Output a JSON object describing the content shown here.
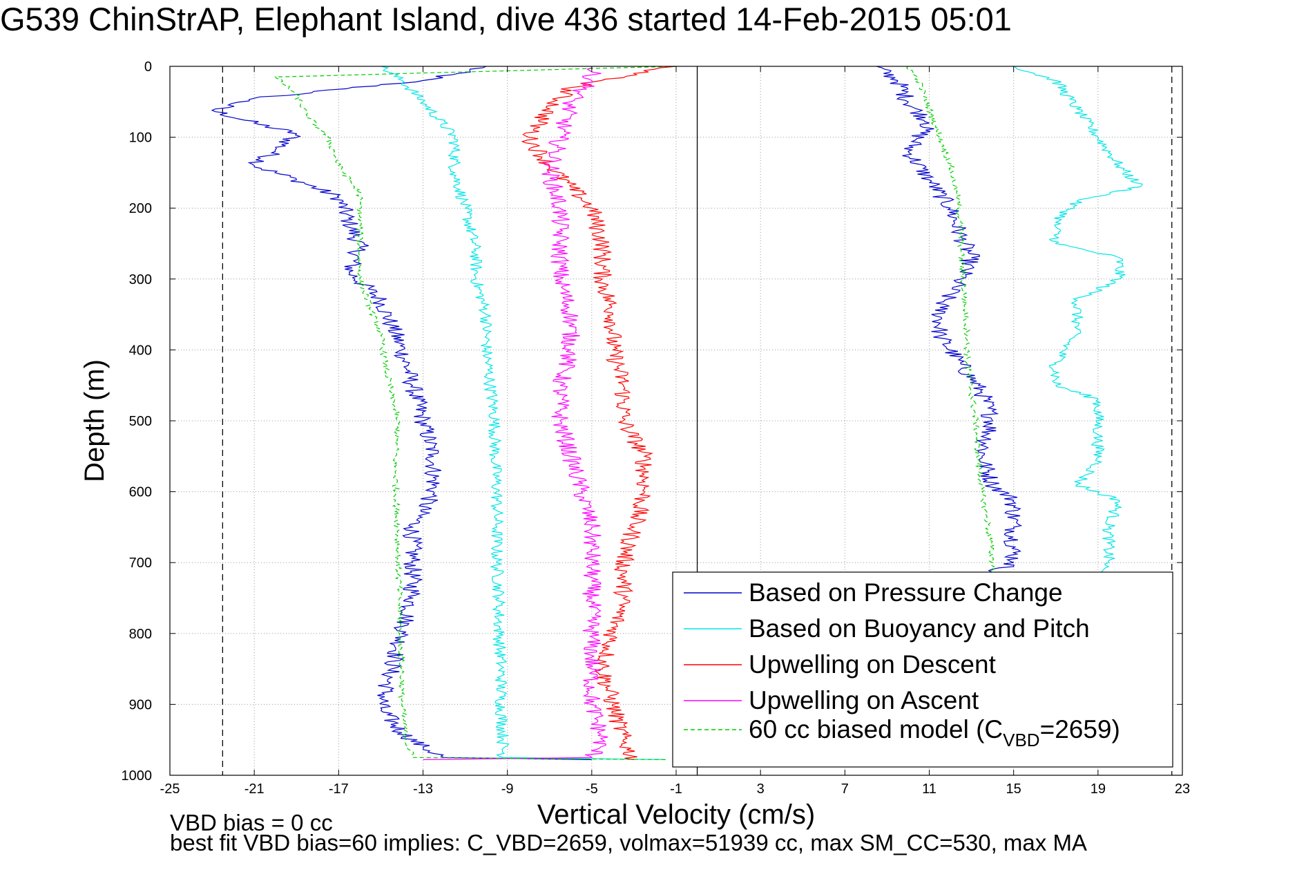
{
  "chart_data": {
    "type": "line",
    "title": "G539 ChinStrAP, Elephant Island, dive 436 started 14-Feb-2015 05:01",
    "xlabel": "Vertical Velocity (cm/s)",
    "ylabel": "Depth (m)",
    "xlim": [
      -25,
      23
    ],
    "ylim": [
      0,
      1000
    ],
    "y_reversed": true,
    "grid": true,
    "xticks": [
      -25,
      -21,
      -17,
      -13,
      -9,
      -5,
      -1,
      3,
      7,
      11,
      15,
      19,
      23
    ],
    "yticks": [
      0,
      100,
      200,
      300,
      400,
      500,
      600,
      700,
      800,
      900,
      1000
    ],
    "xtick_labels": [
      "-25",
      "-21",
      "-17",
      "-13",
      "-9",
      "-5",
      "-1",
      "3",
      "7",
      "11",
      "15",
      "19",
      "23"
    ],
    "ytick_labels": [
      "0",
      "100",
      "200",
      "300",
      "400",
      "500",
      "600",
      "700",
      "800",
      "900",
      "1000"
    ],
    "vertical_lines": [
      {
        "x": -22.5,
        "style": "dashed",
        "color": "#000000"
      },
      {
        "x": 22.5,
        "style": "dashed",
        "color": "#000000"
      },
      {
        "x": 0,
        "style": "solid",
        "color": "#000000"
      }
    ],
    "legend_position": "lower-right",
    "series": [
      {
        "name": "Based on Pressure Change",
        "color": "#0000cc",
        "style": "solid",
        "noise": 0.45,
        "points": [
          [
            -10,
            0
          ],
          [
            -13,
            20
          ],
          [
            -21,
            45
          ],
          [
            -23,
            62
          ],
          [
            -21,
            80
          ],
          [
            -19,
            95
          ],
          [
            -20,
            120
          ],
          [
            -21,
            140
          ],
          [
            -19,
            160
          ],
          [
            -17,
            185
          ],
          [
            -16.5,
            220
          ],
          [
            -16,
            255
          ],
          [
            -16.5,
            290
          ],
          [
            -15,
            330
          ],
          [
            -14.5,
            365
          ],
          [
            -14,
            400
          ],
          [
            -13.5,
            450
          ],
          [
            -13,
            500
          ],
          [
            -12.5,
            550
          ],
          [
            -12.5,
            600
          ],
          [
            -13.5,
            650
          ],
          [
            -13.5,
            700
          ],
          [
            -13.5,
            750
          ],
          [
            -14,
            800
          ],
          [
            -14.5,
            850
          ],
          [
            -15,
            905
          ],
          [
            -14,
            940
          ],
          [
            -13,
            960
          ],
          [
            -12,
            975
          ],
          [
            -5,
            978
          ]
        ]
      },
      {
        "name": "Based on Pressure Change",
        "color": "#0000cc",
        "style": "solid",
        "noise": 0.45,
        "points": [
          [
            8.5,
            0
          ],
          [
            9.5,
            20
          ],
          [
            10,
            50
          ],
          [
            11,
            80
          ],
          [
            10,
            120
          ],
          [
            11,
            160
          ],
          [
            12,
            200
          ],
          [
            12.5,
            240
          ],
          [
            13,
            270
          ],
          [
            12.5,
            300
          ],
          [
            11.5,
            340
          ],
          [
            11.5,
            380
          ],
          [
            12.5,
            420
          ],
          [
            13.5,
            460
          ],
          [
            14,
            500
          ],
          [
            13.5,
            550
          ],
          [
            14,
            590
          ],
          [
            15,
            612
          ],
          [
            15,
            650
          ],
          [
            15,
            700
          ],
          [
            14,
            715
          ]
        ]
      },
      {
        "name": "Based on Buoyancy and Pitch",
        "color": "#00e5e5",
        "style": "solid",
        "noise": 0.3,
        "points": [
          [
            -15,
            0
          ],
          [
            -14,
            20
          ],
          [
            -13,
            50
          ],
          [
            -11.5,
            100
          ],
          [
            -11.5,
            150
          ],
          [
            -11,
            200
          ],
          [
            -10.5,
            260
          ],
          [
            -10.5,
            300
          ],
          [
            -10,
            350
          ],
          [
            -10,
            400
          ],
          [
            -9.8,
            450
          ],
          [
            -9.6,
            500
          ],
          [
            -9.6,
            550
          ],
          [
            -9.5,
            600
          ],
          [
            -9.5,
            650
          ],
          [
            -9.5,
            700
          ],
          [
            -9.4,
            750
          ],
          [
            -9.4,
            800
          ],
          [
            -9.3,
            850
          ],
          [
            -9.3,
            900
          ],
          [
            -9.2,
            950
          ],
          [
            -9.2,
            975
          ],
          [
            -1.5,
            978
          ]
        ]
      },
      {
        "name": "Based on Buoyancy and Pitch",
        "color": "#00e5e5",
        "style": "solid",
        "noise": 0.3,
        "points": [
          [
            15,
            0
          ],
          [
            17,
            20
          ],
          [
            18,
            60
          ],
          [
            19,
            100
          ],
          [
            20,
            140
          ],
          [
            21,
            170
          ],
          [
            18,
            190
          ],
          [
            17,
            220
          ],
          [
            17,
            250
          ],
          [
            20,
            270
          ],
          [
            20,
            300
          ],
          [
            18,
            330
          ],
          [
            18,
            370
          ],
          [
            17,
            420
          ],
          [
            17,
            450
          ],
          [
            19,
            470
          ],
          [
            19,
            520
          ],
          [
            19,
            560
          ],
          [
            18,
            590
          ],
          [
            20,
            612
          ],
          [
            19.5,
            650
          ],
          [
            19.5,
            700
          ],
          [
            19,
            715
          ]
        ]
      },
      {
        "name": "Upwelling on Descent",
        "color": "#ff0000",
        "style": "solid",
        "noise": 0.45,
        "points": [
          [
            -1,
            0
          ],
          [
            -3,
            10
          ],
          [
            -6,
            30
          ],
          [
            -7,
            60
          ],
          [
            -8,
            100
          ],
          [
            -7,
            140
          ],
          [
            -6,
            170
          ],
          [
            -5,
            200
          ],
          [
            -4.5,
            250
          ],
          [
            -4.5,
            300
          ],
          [
            -4,
            350
          ],
          [
            -4,
            400
          ],
          [
            -3.5,
            450
          ],
          [
            -3.5,
            500
          ],
          [
            -2.5,
            550
          ],
          [
            -2.5,
            600
          ],
          [
            -3,
            650
          ],
          [
            -3.5,
            700
          ],
          [
            -3.5,
            750
          ],
          [
            -4,
            800
          ],
          [
            -4.5,
            850
          ],
          [
            -4,
            900
          ],
          [
            -3.5,
            950
          ],
          [
            -3,
            978
          ]
        ]
      },
      {
        "name": "Upwelling on Ascent",
        "color": "#ff00ff",
        "style": "solid",
        "noise": 0.45,
        "points": [
          [
            -5,
            0
          ],
          [
            -5,
            20
          ],
          [
            -6,
            50
          ],
          [
            -6.5,
            100
          ],
          [
            -7,
            150
          ],
          [
            -6.5,
            200
          ],
          [
            -6.5,
            250
          ],
          [
            -6.5,
            300
          ],
          [
            -6,
            350
          ],
          [
            -6,
            400
          ],
          [
            -6.5,
            450
          ],
          [
            -6.5,
            500
          ],
          [
            -6,
            550
          ],
          [
            -5.5,
            600
          ],
          [
            -5,
            650
          ],
          [
            -5,
            700
          ],
          [
            -5,
            750
          ],
          [
            -5,
            800
          ],
          [
            -5,
            850
          ],
          [
            -5,
            900
          ],
          [
            -4.5,
            950
          ],
          [
            -5,
            975
          ],
          [
            -13,
            978
          ]
        ]
      },
      {
        "name": "60 cc biased model (C_VBD=2659)",
        "color": "#00cc00",
        "style": "dashed",
        "noise": 0.15,
        "points": [
          [
            -1,
            0
          ],
          [
            -20,
            15
          ],
          [
            -19,
            40
          ],
          [
            -18.5,
            70
          ],
          [
            -17.5,
            100
          ],
          [
            -17,
            140
          ],
          [
            -16,
            180
          ],
          [
            -16,
            220
          ],
          [
            -16,
            260
          ],
          [
            -16,
            300
          ],
          [
            -15.5,
            340
          ],
          [
            -15,
            380
          ],
          [
            -14.8,
            420
          ],
          [
            -14.5,
            460
          ],
          [
            -14.2,
            500
          ],
          [
            -14.3,
            550
          ],
          [
            -14.3,
            600
          ],
          [
            -14.2,
            650
          ],
          [
            -14.2,
            700
          ],
          [
            -14.1,
            750
          ],
          [
            -14.1,
            800
          ],
          [
            -14,
            850
          ],
          [
            -14,
            900
          ],
          [
            -13.8,
            950
          ],
          [
            -13.5,
            975
          ],
          [
            -1.5,
            978
          ]
        ]
      },
      {
        "name": "60 cc biased model (C_VBD=2659)",
        "color": "#00cc00",
        "style": "dashed",
        "noise": 0.15,
        "points": [
          [
            10,
            0
          ],
          [
            10.5,
            20
          ],
          [
            11,
            60
          ],
          [
            11.5,
            100
          ],
          [
            12,
            140
          ],
          [
            12.3,
            180
          ],
          [
            12.5,
            220
          ],
          [
            12.5,
            260
          ],
          [
            12.6,
            300
          ],
          [
            12.7,
            340
          ],
          [
            12.8,
            380
          ],
          [
            12.8,
            420
          ],
          [
            13,
            460
          ],
          [
            13.2,
            500
          ],
          [
            13.3,
            550
          ],
          [
            13.5,
            600
          ],
          [
            13.8,
            650
          ],
          [
            14,
            700
          ],
          [
            14,
            715
          ]
        ]
      }
    ],
    "legend": [
      {
        "label": "Based on Pressure Change",
        "color": "#0000cc",
        "style": "solid"
      },
      {
        "label": "Based on Buoyancy and Pitch",
        "color": "#00e5e5",
        "style": "solid"
      },
      {
        "label": "Upwelling on Descent",
        "color": "#ff0000",
        "style": "solid"
      },
      {
        "label": "Upwelling on Ascent",
        "color": "#ff00ff",
        "style": "solid"
      },
      {
        "label_main": "60 cc biased model (C",
        "label_sub": "VBD",
        "label_tail": "=2659)",
        "color": "#00cc00",
        "style": "dashed"
      }
    ]
  },
  "footer": {
    "line1": "VBD bias = 0 cc",
    "line2": "best fit VBD bias=60 implies: C_VBD=2659, volmax=51939 cc, max SM_CC=530, max MA"
  }
}
